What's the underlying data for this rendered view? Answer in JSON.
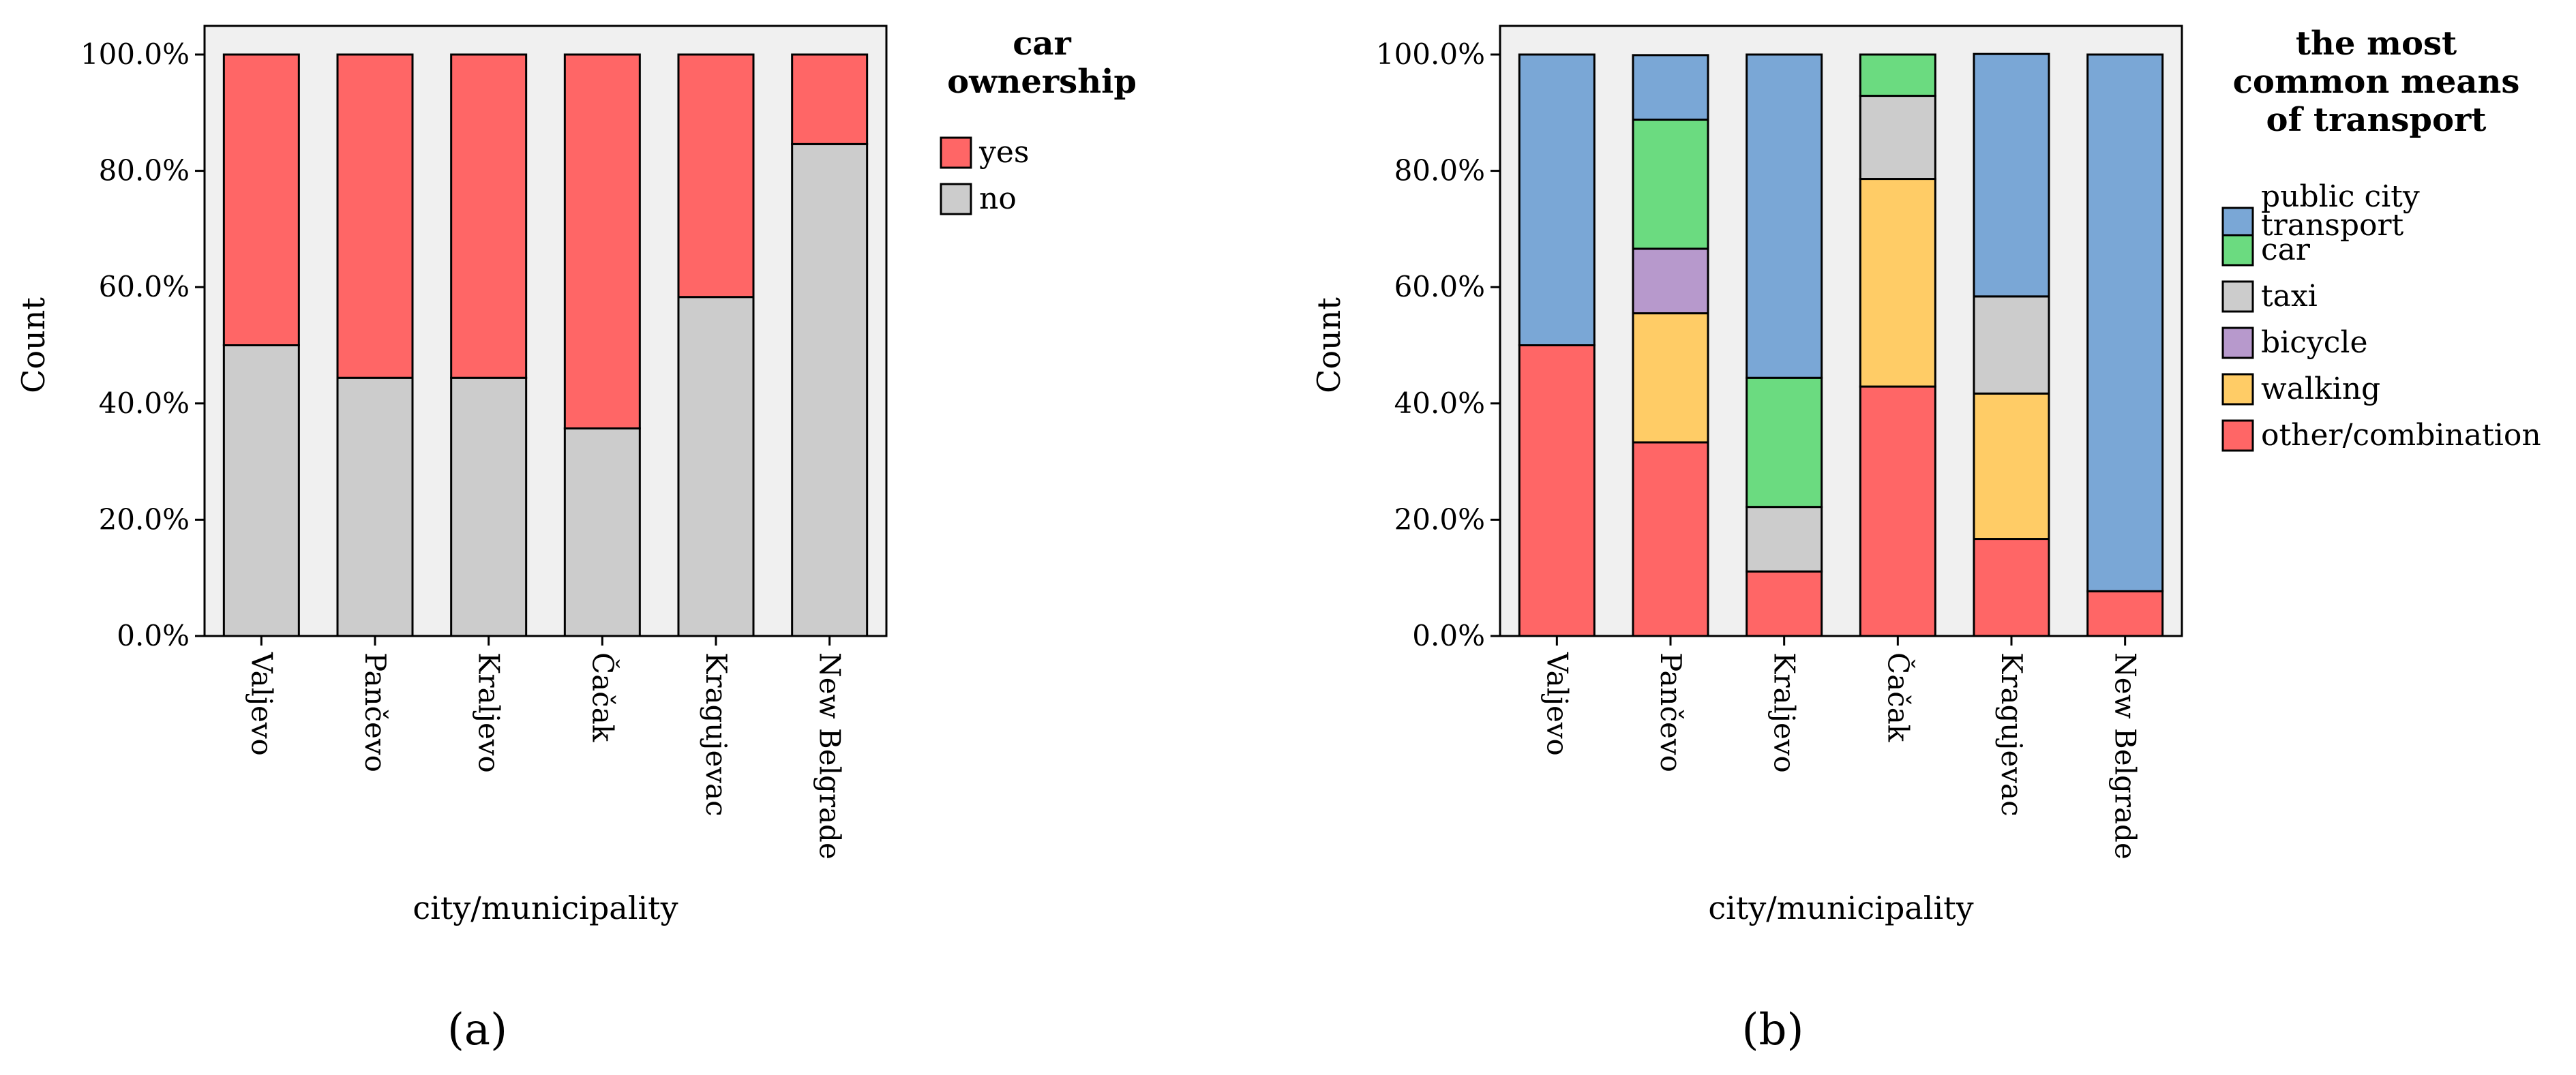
{
  "chart_data": [
    {
      "type": "bar",
      "stacked": true,
      "panel_label": "(a)",
      "title": "",
      "xlabel": "city/municipality",
      "ylabel": "Count",
      "ylim": [
        0,
        100
      ],
      "y_ticks": [
        "0.0%",
        "20.0%",
        "40.0%",
        "60.0%",
        "80.0%",
        "100.0%"
      ],
      "categories": [
        "Valjevo",
        "Pančevo",
        "Kraljevo",
        "Čačak",
        "Kragujevac",
        "New Belgrade"
      ],
      "legend_title": [
        "car",
        "ownership"
      ],
      "series": [
        {
          "name": "no",
          "color": "#cccccc",
          "values": [
            50.0,
            44.4,
            44.4,
            35.7,
            58.3,
            84.6
          ]
        },
        {
          "name": "yes",
          "color": "#ff6666",
          "values": [
            50.0,
            55.6,
            55.6,
            64.3,
            41.7,
            15.4
          ]
        }
      ],
      "legend_order": [
        "yes",
        "no"
      ]
    },
    {
      "type": "bar",
      "stacked": true,
      "panel_label": "(b)",
      "title": "",
      "xlabel": "city/municipality",
      "ylabel": "Count",
      "ylim": [
        0,
        100
      ],
      "y_ticks": [
        "0.0%",
        "20.0%",
        "40.0%",
        "60.0%",
        "80.0%",
        "100.0%"
      ],
      "categories": [
        "Valjevo",
        "Pančevo",
        "Kraljevo",
        "Čačak",
        "Kragujevac",
        "New Belgrade"
      ],
      "legend_title": [
        "the most",
        "common means",
        "of transport"
      ],
      "series": [
        {
          "name": "other/combination",
          "color": "#ff6666",
          "values": [
            50.0,
            33.3,
            11.1,
            42.9,
            16.7,
            7.7
          ]
        },
        {
          "name": "walking",
          "color": "#ffcc66",
          "values": [
            0,
            22.2,
            0,
            35.7,
            25.0,
            0
          ]
        },
        {
          "name": "bicycle",
          "color": "#b799cc",
          "values": [
            0,
            11.1,
            0,
            0,
            0,
            0
          ]
        },
        {
          "name": "taxi",
          "color": "#cccccc",
          "values": [
            0,
            0,
            11.1,
            14.3,
            16.7,
            0
          ]
        },
        {
          "name": "car",
          "color": "#6bdb80",
          "values": [
            0,
            22.2,
            22.2,
            7.1,
            0,
            0
          ]
        },
        {
          "name": "public city transport",
          "color": "#7aa7d6",
          "values": [
            50.0,
            11.1,
            55.6,
            0,
            41.7,
            92.3
          ]
        }
      ],
      "legend_order": [
        "public city transport",
        "car",
        "taxi",
        "bicycle",
        "walking",
        "other/combination"
      ],
      "legend_label_lines": {
        "public city transport": [
          "public city",
          "transport"
        ]
      }
    }
  ]
}
